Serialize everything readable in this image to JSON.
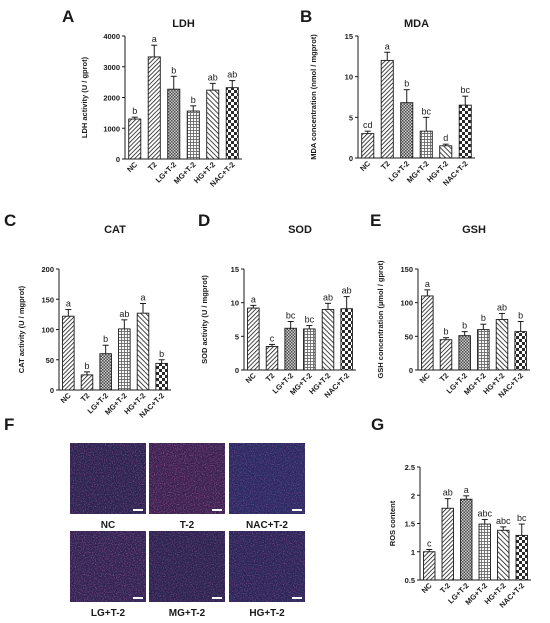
{
  "panel_letters": [
    "A",
    "B",
    "C",
    "D",
    "E",
    "F",
    "G"
  ],
  "micrograph_labels": [
    "NC",
    "T-2",
    "NAC+T-2",
    "LG+T-2",
    "MG+T-2",
    "HG+T-2"
  ],
  "colors": {
    "bar_fill": "#ffffff",
    "bar_stroke": "#1a1a1a",
    "axis": "#1a1a1a",
    "micrograph_base": "#2a2450",
    "micrograph_dots": "#9a2a7a",
    "micrograph_blue": "#3a3aa0"
  },
  "chart_data": [
    {
      "id": "A",
      "type": "bar",
      "title": "LDH",
      "ylabel": "LDH activity (U / gprot)",
      "ylim": [
        0,
        4000
      ],
      "yticks": [
        0,
        1000,
        2000,
        3000,
        4000
      ],
      "categories": [
        "NC",
        "T2",
        "LG+T-2",
        "MG+T-2",
        "HG+T-2",
        "NAC+T-2"
      ],
      "values": [
        1300,
        3320,
        2270,
        1560,
        2240,
        2320
      ],
      "errors": [
        60,
        380,
        420,
        170,
        220,
        230
      ],
      "letters": [
        "b",
        "a",
        "b",
        "b",
        "ab",
        "ab"
      ],
      "patterns": [
        "diag",
        "diag",
        "cross",
        "hatch",
        "diag2",
        "dots"
      ]
    },
    {
      "id": "B",
      "type": "bar",
      "title": "MDA",
      "ylabel": "MDA concentration (nmol / mgprot)",
      "ylim": [
        0,
        15
      ],
      "yticks": [
        0,
        5,
        10,
        15
      ],
      "categories": [
        "NC",
        "T2",
        "LG+T-2",
        "MG+T-2",
        "HG+T-2",
        "NAC+T-2"
      ],
      "values": [
        3.0,
        12.0,
        6.8,
        3.3,
        1.5,
        6.5
      ],
      "errors": [
        0.3,
        1.0,
        1.6,
        1.7,
        0.2,
        1.1
      ],
      "letters": [
        "cd",
        "a",
        "b",
        "bc",
        "d",
        "bc"
      ],
      "patterns": [
        "diag",
        "diag",
        "cross",
        "hatch",
        "diag2",
        "dots"
      ]
    },
    {
      "id": "C",
      "type": "bar",
      "title": "CAT",
      "ylabel": "CAT activity (U / mgprot)",
      "ylim": [
        0,
        200
      ],
      "yticks": [
        0,
        50,
        100,
        150,
        200
      ],
      "categories": [
        "NC",
        "T2",
        "LG+T-2",
        "MG+T-2",
        "HG+T-2",
        "NAC+T-2"
      ],
      "values": [
        122,
        25,
        60,
        101,
        127,
        44
      ],
      "errors": [
        11,
        5,
        14,
        15,
        16,
        6
      ],
      "letters": [
        "a",
        "b",
        "b",
        "ab",
        "a",
        "b"
      ],
      "patterns": [
        "diag",
        "diag",
        "cross",
        "hatch",
        "diag2",
        "dots"
      ]
    },
    {
      "id": "D",
      "type": "bar",
      "title": "SOD",
      "ylabel": "SOD activity (U / mgprot)",
      "ylim": [
        0,
        15
      ],
      "yticks": [
        0,
        5,
        10,
        15
      ],
      "categories": [
        "NC",
        "T2",
        "LG+T-2",
        "MG+T-2",
        "HG+T-2",
        "NAC+T-2"
      ],
      "values": [
        9.2,
        3.5,
        6.2,
        6.1,
        9.0,
        9.1
      ],
      "errors": [
        0.4,
        0.3,
        1.0,
        0.5,
        0.9,
        1.8
      ],
      "letters": [
        "a",
        "c",
        "bc",
        "bc",
        "ab",
        "ab"
      ],
      "patterns": [
        "diag",
        "diag",
        "cross",
        "hatch",
        "diag2",
        "dots"
      ]
    },
    {
      "id": "E",
      "type": "bar",
      "title": "GSH",
      "ylabel": "GSH concentration (µmol / gprot)",
      "ylim": [
        0,
        150
      ],
      "yticks": [
        0,
        50,
        100,
        150
      ],
      "categories": [
        "NC",
        "T2",
        "LG+T-2",
        "MG+T-2",
        "HG+T-2",
        "NAC+T-2"
      ],
      "values": [
        110,
        45,
        51,
        60,
        75,
        57
      ],
      "errors": [
        9,
        3,
        6,
        8,
        9,
        15
      ],
      "letters": [
        "a",
        "b",
        "b",
        "b",
        "ab",
        "b"
      ],
      "patterns": [
        "diag",
        "diag",
        "cross",
        "hatch",
        "diag2",
        "dots"
      ]
    },
    {
      "id": "G",
      "type": "bar",
      "title": "",
      "ylabel": "ROS content",
      "ylim": [
        0.5,
        2.5
      ],
      "yticks": [
        0.5,
        1.0,
        1.5,
        2.0,
        2.5
      ],
      "categories": [
        "NC",
        "T-2",
        "LG+T-2",
        "MG+T-2",
        "HG+T-2",
        "NAC+T-2"
      ],
      "values": [
        1.0,
        1.77,
        1.93,
        1.49,
        1.38,
        1.29
      ],
      "errors": [
        0.04,
        0.17,
        0.06,
        0.08,
        0.06,
        0.2
      ],
      "letters": [
        "c",
        "ab",
        "a",
        "abc",
        "abc",
        "bc"
      ],
      "patterns": [
        "diag",
        "diag",
        "cross",
        "hatch",
        "diag2",
        "dots"
      ]
    }
  ]
}
